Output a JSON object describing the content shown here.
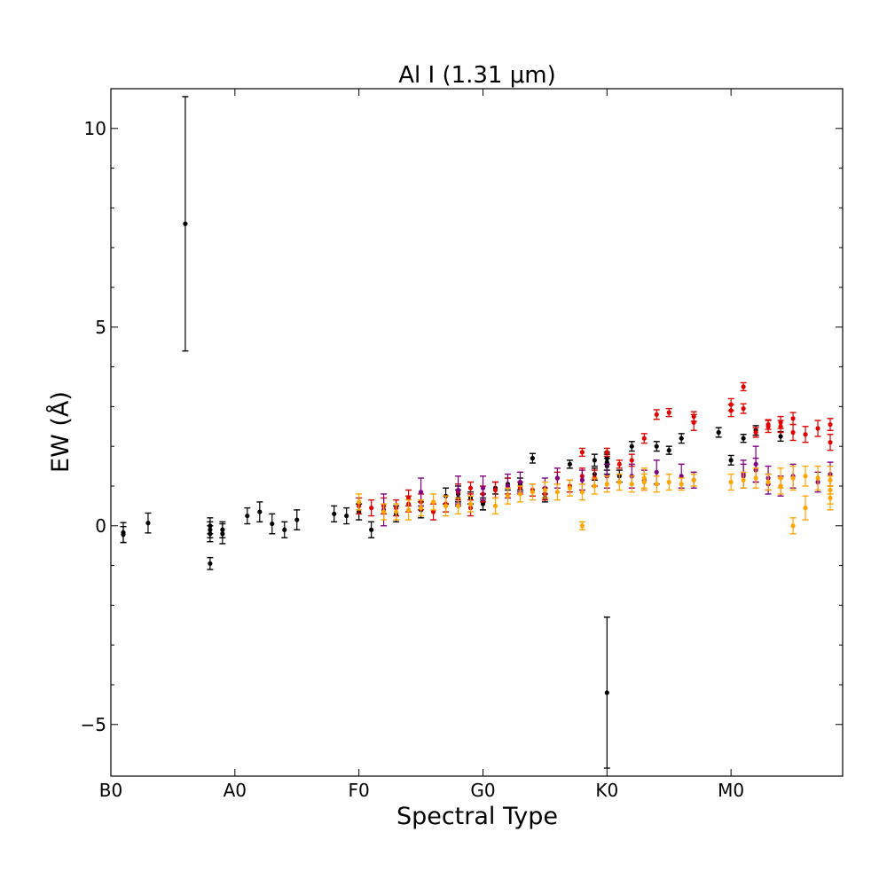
{
  "chart_data": {
    "type": "scatter",
    "title": "Al I (1.31 μm)",
    "xlabel": "Spectral Type",
    "ylabel": "EW (Å)",
    "xlim": [
      0,
      59
    ],
    "ylim": [
      -6.3,
      11.0
    ],
    "x_ticks": [
      {
        "value": 0,
        "label": "B0"
      },
      {
        "value": 10,
        "label": "A0"
      },
      {
        "value": 20,
        "label": "F0"
      },
      {
        "value": 30,
        "label": "G0"
      },
      {
        "value": 40,
        "label": "K0"
      },
      {
        "value": 50,
        "label": "M0"
      }
    ],
    "y_ticks": [
      {
        "value": -5,
        "label": "−5"
      },
      {
        "value": 0,
        "label": "0"
      },
      {
        "value": 5,
        "label": "5"
      },
      {
        "value": 10,
        "label": "10"
      }
    ],
    "grid": false,
    "series": [
      {
        "color": "#000000",
        "points": [
          [
            1,
            -0.17,
            0.25
          ],
          [
            1,
            -0.22,
            0.2
          ],
          [
            3,
            0.07,
            0.25
          ],
          [
            6,
            7.6,
            3.2
          ],
          [
            8,
            -0.95,
            0.15
          ],
          [
            8,
            0.0,
            0.2
          ],
          [
            8,
            -0.1,
            0.2
          ],
          [
            8,
            -0.2,
            0.2
          ],
          [
            9,
            -0.2,
            0.25
          ],
          [
            9,
            -0.1,
            0.2
          ],
          [
            11,
            0.25,
            0.2
          ],
          [
            12,
            0.35,
            0.25
          ],
          [
            13,
            0.05,
            0.25
          ],
          [
            14,
            -0.1,
            0.2
          ],
          [
            15,
            0.15,
            0.25
          ],
          [
            18,
            0.3,
            0.2
          ],
          [
            19,
            0.25,
            0.2
          ],
          [
            20,
            0.35,
            0.2
          ],
          [
            21,
            -0.1,
            0.2
          ],
          [
            23,
            0.3,
            0.2
          ],
          [
            25,
            0.4,
            0.2
          ],
          [
            27,
            0.75,
            0.2
          ],
          [
            28,
            0.7,
            0.2
          ],
          [
            28,
            0.8,
            0.2
          ],
          [
            29,
            0.7,
            0.15
          ],
          [
            30,
            0.6,
            0.2
          ],
          [
            30,
            0.55,
            0.15
          ],
          [
            31,
            0.95,
            0.15
          ],
          [
            32,
            1.05,
            0.15
          ],
          [
            33,
            1.05,
            0.15
          ],
          [
            34,
            1.7,
            0.12
          ],
          [
            35,
            0.7,
            0.1
          ],
          [
            37,
            1.55,
            0.1
          ],
          [
            39,
            1.65,
            0.15
          ],
          [
            39,
            1.3,
            0.15
          ],
          [
            40,
            1.5,
            0.2
          ],
          [
            40,
            1.6,
            0.2
          ],
          [
            40,
            1.7,
            0.15
          ],
          [
            40,
            -4.2,
            1.9
          ],
          [
            41,
            1.25,
            0.15
          ],
          [
            42,
            2.0,
            0.12
          ],
          [
            44,
            2.0,
            0.12
          ],
          [
            45,
            1.9,
            0.1
          ],
          [
            46,
            2.2,
            0.12
          ],
          [
            49,
            2.35,
            0.12
          ],
          [
            50,
            1.65,
            0.12
          ],
          [
            51,
            2.2,
            0.1
          ],
          [
            52,
            2.4,
            0.12
          ],
          [
            54,
            2.25,
            0.12
          ]
        ]
      },
      {
        "color": "#e00000",
        "points": [
          [
            20,
            0.5,
            0.2
          ],
          [
            21,
            0.45,
            0.2
          ],
          [
            22,
            0.5,
            0.2
          ],
          [
            23,
            0.45,
            0.2
          ],
          [
            24,
            0.7,
            0.2
          ],
          [
            24,
            0.55,
            0.2
          ],
          [
            25,
            0.6,
            0.2
          ],
          [
            26,
            0.35,
            0.2
          ],
          [
            27,
            0.55,
            0.2
          ],
          [
            28,
            0.85,
            0.2
          ],
          [
            29,
            0.95,
            0.15
          ],
          [
            29,
            0.45,
            0.2
          ],
          [
            30,
            0.8,
            0.2
          ],
          [
            31,
            0.9,
            0.2
          ],
          [
            32,
            1.0,
            0.2
          ],
          [
            33,
            0.95,
            0.15
          ],
          [
            34,
            0.9,
            0.15
          ],
          [
            35,
            0.8,
            0.15
          ],
          [
            36,
            1.2,
            0.15
          ],
          [
            37,
            1.0,
            0.15
          ],
          [
            38,
            1.25,
            0.2
          ],
          [
            38,
            1.85,
            0.1
          ],
          [
            39,
            1.2,
            0.2
          ],
          [
            40,
            1.85,
            0.1
          ],
          [
            41,
            1.55,
            0.1
          ],
          [
            42,
            1.65,
            0.15
          ],
          [
            43,
            2.2,
            0.12
          ],
          [
            44,
            2.8,
            0.12
          ],
          [
            45,
            2.85,
            0.1
          ],
          [
            47,
            2.75,
            0.12
          ],
          [
            47,
            2.6,
            0.2
          ],
          [
            50,
            3.05,
            0.15
          ],
          [
            50,
            2.9,
            0.15
          ],
          [
            51,
            3.5,
            0.1
          ],
          [
            51,
            2.95,
            0.12
          ],
          [
            52,
            2.35,
            0.12
          ],
          [
            53,
            2.5,
            0.15
          ],
          [
            53,
            2.55,
            0.12
          ],
          [
            54,
            2.6,
            0.15
          ],
          [
            54,
            2.5,
            0.15
          ],
          [
            55,
            2.35,
            0.2
          ],
          [
            55,
            2.7,
            0.15
          ],
          [
            56,
            2.3,
            0.2
          ],
          [
            57,
            2.45,
            0.2
          ],
          [
            58,
            2.55,
            0.15
          ],
          [
            58,
            2.1,
            0.2
          ]
        ]
      },
      {
        "color": "#800080",
        "points": [
          [
            22,
            0.4,
            0.4
          ],
          [
            25,
            0.85,
            0.35
          ],
          [
            28,
            0.9,
            0.35
          ],
          [
            30,
            0.95,
            0.3
          ],
          [
            32,
            1.0,
            0.3
          ],
          [
            33,
            1.1,
            0.25
          ],
          [
            35,
            0.95,
            0.25
          ],
          [
            36,
            1.2,
            0.25
          ],
          [
            38,
            1.15,
            0.25
          ],
          [
            40,
            1.25,
            0.3
          ],
          [
            42,
            1.25,
            0.3
          ],
          [
            43,
            1.15,
            0.25
          ],
          [
            44,
            1.35,
            0.3
          ],
          [
            46,
            1.25,
            0.3
          ],
          [
            47,
            1.15,
            0.2
          ],
          [
            51,
            1.3,
            0.35
          ],
          [
            51,
            1.25,
            0.3
          ],
          [
            52,
            1.4,
            0.3
          ],
          [
            52,
            1.55,
            0.45
          ],
          [
            53,
            1.2,
            0.3
          ],
          [
            53,
            1.05,
            0.25
          ],
          [
            54,
            1.0,
            0.25
          ],
          [
            55,
            1.25,
            0.3
          ],
          [
            57,
            1.1,
            0.25
          ],
          [
            58,
            1.3,
            0.3
          ]
        ]
      },
      {
        "color": "#ffa500",
        "points": [
          [
            20,
            0.6,
            0.2
          ],
          [
            22,
            0.35,
            0.2
          ],
          [
            23,
            0.35,
            0.2
          ],
          [
            24,
            0.4,
            0.25
          ],
          [
            25,
            0.45,
            0.2
          ],
          [
            26,
            0.6,
            0.2
          ],
          [
            27,
            0.5,
            0.25
          ],
          [
            28,
            0.5,
            0.2
          ],
          [
            29,
            0.55,
            0.2
          ],
          [
            31,
            0.5,
            0.2
          ],
          [
            32,
            0.75,
            0.2
          ],
          [
            33,
            0.8,
            0.2
          ],
          [
            34,
            0.85,
            0.2
          ],
          [
            35,
            0.9,
            0.2
          ],
          [
            36,
            0.85,
            0.2
          ],
          [
            37,
            0.95,
            0.2
          ],
          [
            38,
            0.0,
            0.1
          ],
          [
            38,
            0.85,
            0.2
          ],
          [
            39,
            1.0,
            0.2
          ],
          [
            40,
            1.05,
            0.2
          ],
          [
            41,
            1.1,
            0.2
          ],
          [
            42,
            1.05,
            0.2
          ],
          [
            43,
            1.1,
            0.2
          ],
          [
            43,
            1.2,
            0.25
          ],
          [
            44,
            1.05,
            0.2
          ],
          [
            45,
            1.1,
            0.2
          ],
          [
            46,
            1.05,
            0.15
          ],
          [
            47,
            1.15,
            0.15
          ],
          [
            50,
            1.1,
            0.2
          ],
          [
            51,
            1.15,
            0.2
          ],
          [
            52,
            1.2,
            0.25
          ],
          [
            53,
            1.1,
            0.2
          ],
          [
            54,
            1.0,
            0.2
          ],
          [
            54,
            1.2,
            0.25
          ],
          [
            55,
            0.0,
            0.2
          ],
          [
            55,
            1.2,
            0.3
          ],
          [
            56,
            0.45,
            0.3
          ],
          [
            56,
            1.25,
            0.25
          ],
          [
            57,
            1.2,
            0.3
          ],
          [
            58,
            0.7,
            0.3
          ],
          [
            58,
            0.9,
            0.35
          ],
          [
            58,
            1.15,
            0.35
          ]
        ]
      }
    ]
  }
}
